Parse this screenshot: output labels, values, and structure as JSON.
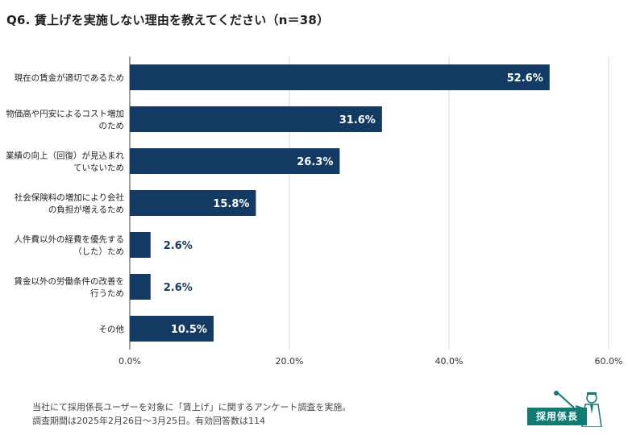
{
  "title": "Q6. 賃上げを実施しない理由を教えてください（n＝38）",
  "chart_data": {
    "type": "bar",
    "orientation": "horizontal",
    "categories": [
      [
        "現在の賃金が適切であるため"
      ],
      [
        "物価高や円安によるコスト増加",
        "のため"
      ],
      [
        "業績の向上（回復）が見込まれ",
        "ていないため"
      ],
      [
        "社会保険料の増加により会社",
        "の負担が増えるため"
      ],
      [
        "人件費以外の経費を優先する",
        "（した）ため"
      ],
      [
        "賃金以外の労働条件の改善を",
        "行うため"
      ],
      [
        "その他"
      ]
    ],
    "values": [
      52.6,
      31.6,
      26.3,
      15.8,
      2.6,
      2.6,
      10.5
    ],
    "value_labels": [
      "52.6%",
      "31.6%",
      "26.3%",
      "15.8%",
      "2.6%",
      "2.6%",
      "10.5%"
    ],
    "xlim": [
      0,
      60
    ],
    "xticks": [
      "0.0%",
      "20.0%",
      "40.0%",
      "60.0%"
    ],
    "grid": true,
    "bar_color": "#123a63"
  },
  "footnote": {
    "line1": "当社にて採用係長ユーザーを対象に「賃上げ」に関するアンケート調査を実施。",
    "line2": "調査期間は2025年2月26日〜3月25日。有効回答数は114"
  },
  "logo": {
    "text": "採用係長",
    "icon": "mascot-character-icon",
    "color": "#0e7c73"
  }
}
